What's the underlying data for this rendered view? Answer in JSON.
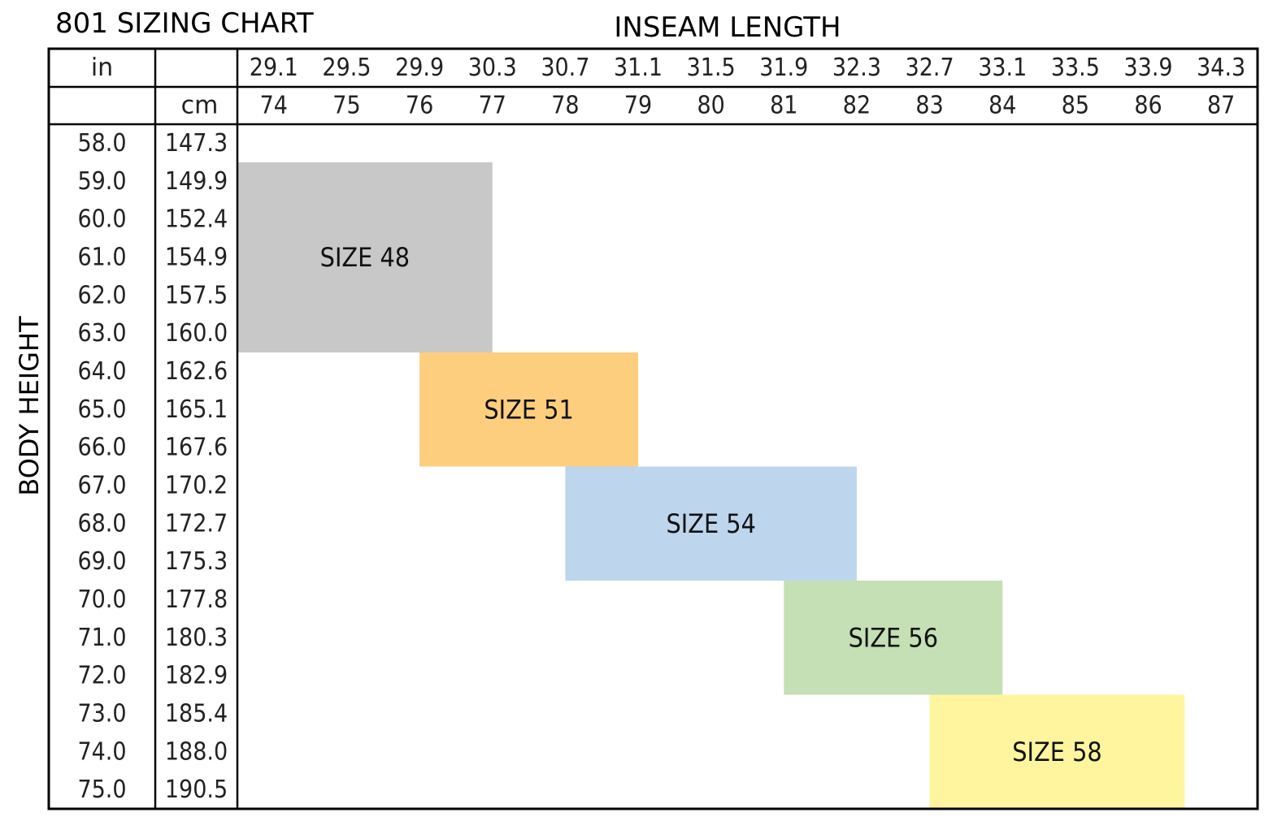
{
  "chart_data": {
    "type": "table",
    "title": "801 SIZING CHART",
    "column_axis_label": "INSEAM LENGTH",
    "row_axis_label": "BODY HEIGHT",
    "unit_in": "in",
    "unit_cm": "cm",
    "inseam_in": [
      "29.1",
      "29.5",
      "29.9",
      "30.3",
      "30.7",
      "31.1",
      "31.5",
      "31.9",
      "32.3",
      "32.7",
      "33.1",
      "33.5",
      "33.9",
      "34.3"
    ],
    "inseam_cm": [
      "74",
      "75",
      "76",
      "77",
      "78",
      "79",
      "80",
      "81",
      "82",
      "83",
      "84",
      "85",
      "86",
      "87"
    ],
    "height_in": [
      "58.0",
      "59.0",
      "60.0",
      "61.0",
      "62.0",
      "63.0",
      "64.0",
      "65.0",
      "66.0",
      "67.0",
      "68.0",
      "69.0",
      "70.0",
      "71.0",
      "72.0",
      "73.0",
      "74.0",
      "75.0"
    ],
    "height_cm": [
      "147.3",
      "149.9",
      "152.4",
      "154.9",
      "157.5",
      "160.0",
      "162.6",
      "165.1",
      "167.6",
      "170.2",
      "172.7",
      "175.3",
      "177.8",
      "180.3",
      "182.9",
      "185.4",
      "188.0",
      "190.5"
    ],
    "sizes": [
      {
        "label": "SIZE 48",
        "color": "#c8c8c8",
        "inseam_cm_from": 74,
        "inseam_cm_to": 77.5,
        "height_in_from": 59.0,
        "height_in_to": 63.0
      },
      {
        "label": "SIZE 51",
        "color": "#fcce7e",
        "inseam_cm_from": 76.5,
        "inseam_cm_to": 79.5,
        "height_in_from": 64.0,
        "height_in_to": 66.0
      },
      {
        "label": "SIZE 54",
        "color": "#bdd6ee",
        "inseam_cm_from": 78.5,
        "inseam_cm_to": 82.5,
        "height_in_from": 67.0,
        "height_in_to": 69.0
      },
      {
        "label": "SIZE 56",
        "color": "#c5e0b4",
        "inseam_cm_from": 81.5,
        "inseam_cm_to": 84.5,
        "height_in_from": 70.0,
        "height_in_to": 72.0
      },
      {
        "label": "SIZE 58",
        "color": "#fff59e",
        "inseam_cm_from": 83.5,
        "inseam_cm_to": 87,
        "height_in_from": 73.0,
        "height_in_to": 75.0
      }
    ]
  }
}
